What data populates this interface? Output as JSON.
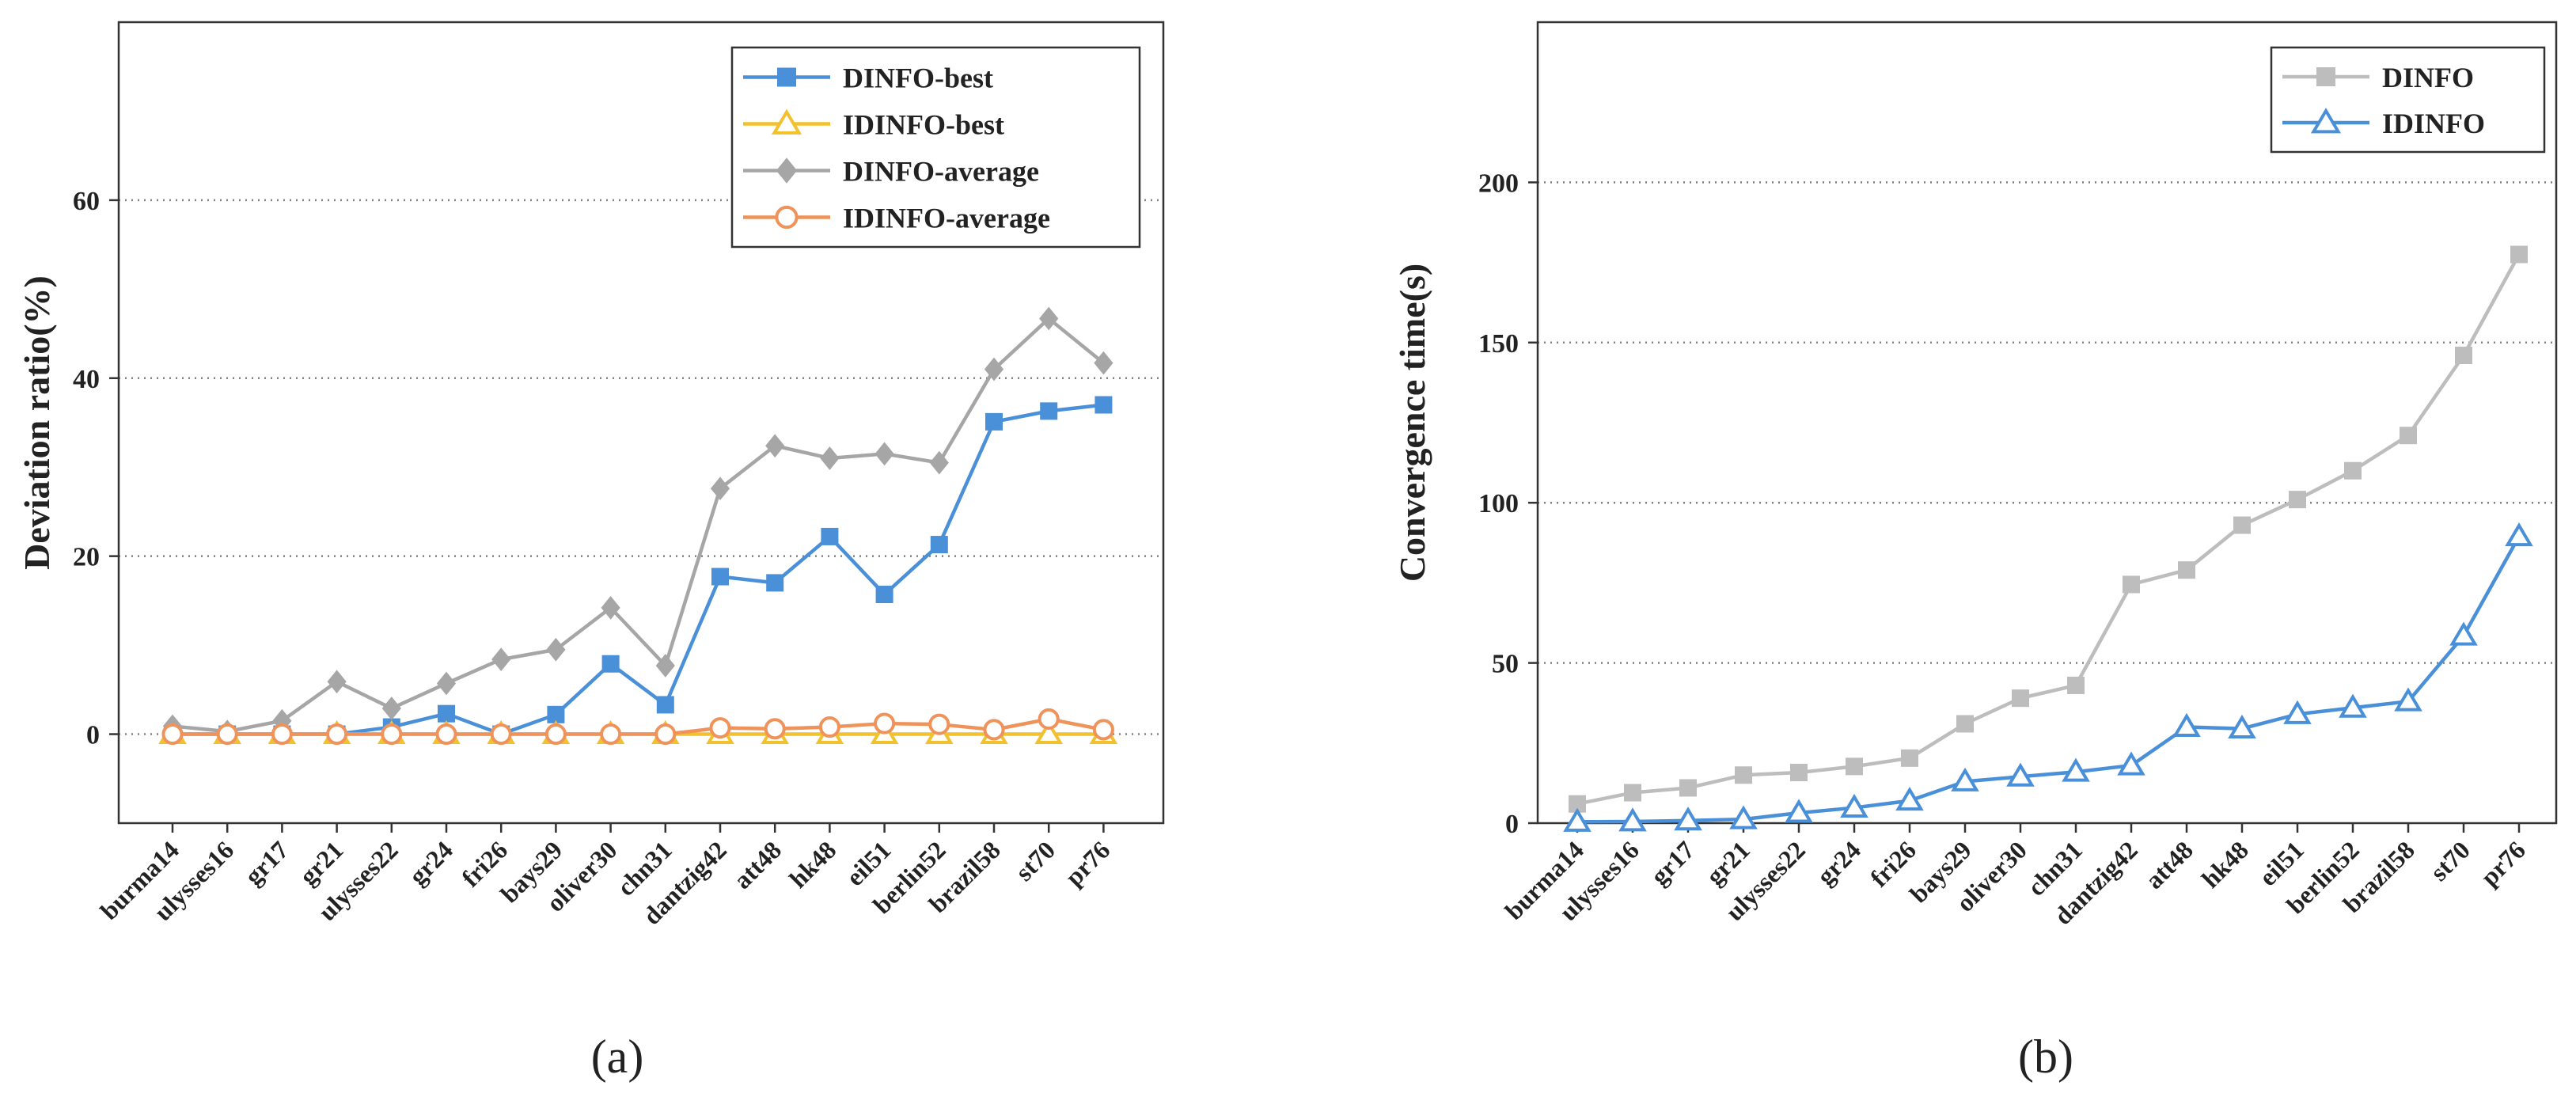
{
  "chart_data": [
    {
      "type": "line",
      "caption": "(a)",
      "title": "",
      "xlabel": "",
      "ylabel": "Deviation ratio(%)",
      "ylim": [
        -10,
        80
      ],
      "yticks": [
        0,
        20,
        40,
        60
      ],
      "grid": "horizontal dotted at y ticks",
      "legend_position": "top-right",
      "categories": [
        "burma14",
        "ulysses16",
        "gr17",
        "gr21",
        "ulysses22",
        "gr24",
        "fri26",
        "bays29",
        "oliver30",
        "chn31",
        "dantzig42",
        "att48",
        "hk48",
        "eil51",
        "berlin52",
        "brazil58",
        "st70",
        "pr76"
      ],
      "series": [
        {
          "name": "DINFO-best",
          "color": "#4A90D9",
          "marker": "square",
          "values": [
            0,
            0,
            0,
            0,
            0.8,
            2.3,
            0,
            2.2,
            7.9,
            3.3,
            17.7,
            17.0,
            22.2,
            15.7,
            21.3,
            35.1,
            36.3,
            37.0
          ]
        },
        {
          "name": "IDINFO-best",
          "color": "#F2C12E",
          "marker": "triangle",
          "values": [
            0,
            0,
            0,
            0,
            0,
            0,
            0,
            0,
            0,
            0,
            0,
            0,
            0,
            0,
            0,
            0,
            0,
            0
          ]
        },
        {
          "name": "DINFO-average",
          "color": "#A6A6A6",
          "marker": "diamond",
          "values": [
            0.9,
            0.3,
            1.5,
            5.9,
            2.9,
            5.7,
            8.4,
            9.5,
            14.2,
            7.7,
            27.6,
            32.4,
            31.0,
            31.5,
            30.5,
            41.0,
            46.7,
            41.7
          ]
        },
        {
          "name": "IDINFO-average",
          "color": "#F0935A",
          "marker": "circle",
          "values": [
            0,
            0,
            0,
            0,
            0,
            0,
            0,
            0,
            0,
            0,
            0.7,
            0.6,
            0.8,
            1.2,
            1.1,
            0.5,
            1.7,
            0.5
          ]
        }
      ]
    },
    {
      "type": "line",
      "caption": "(b)",
      "title": "",
      "xlabel": "",
      "ylabel": "Convergence time(s)",
      "ylim": [
        0,
        250
      ],
      "yticks": [
        0,
        50,
        100,
        150,
        200
      ],
      "grid": "horizontal dotted at y ticks",
      "legend_position": "top-right",
      "categories": [
        "burma14",
        "ulysses16",
        "gr17",
        "gr21",
        "ulysses22",
        "gr24",
        "fri26",
        "bays29",
        "oliver30",
        "chn31",
        "dantzig42",
        "att48",
        "hk48",
        "eil51",
        "berlin52",
        "brazil58",
        "st70",
        "pr76"
      ],
      "series": [
        {
          "name": "DINFO",
          "color": "#BDBDBD",
          "marker": "square",
          "values": [
            6,
            9.5,
            11,
            15,
            15.8,
            17.7,
            20.3,
            31,
            39,
            43,
            74.5,
            79,
            93,
            101,
            110,
            121,
            146,
            177.5
          ]
        },
        {
          "name": "IDINFO",
          "color": "#4A90D9",
          "marker": "triangle",
          "values": [
            0.4,
            0.5,
            0.8,
            1.2,
            3.2,
            4.8,
            7,
            13,
            14.5,
            16,
            18,
            30,
            29.5,
            34,
            36,
            38,
            58.5,
            89.5
          ]
        }
      ]
    }
  ]
}
